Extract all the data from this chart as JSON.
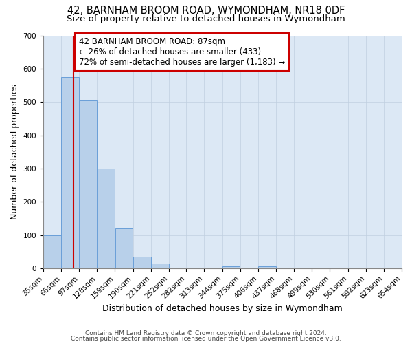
{
  "title": "42, BARNHAM BROOM ROAD, WYMONDHAM, NR18 0DF",
  "subtitle": "Size of property relative to detached houses in Wymondham",
  "xlabel": "Distribution of detached houses by size in Wymondham",
  "ylabel": "Number of detached properties",
  "bin_edges": [
    35,
    66,
    97,
    128,
    159,
    190,
    221,
    252,
    282,
    313,
    344,
    375,
    406,
    437,
    468,
    499,
    530,
    561,
    592,
    623,
    654
  ],
  "bin_labels": [
    "35sqm",
    "66sqm",
    "97sqm",
    "128sqm",
    "159sqm",
    "190sqm",
    "221sqm",
    "252sqm",
    "282sqm",
    "313sqm",
    "344sqm",
    "375sqm",
    "406sqm",
    "437sqm",
    "468sqm",
    "499sqm",
    "530sqm",
    "561sqm",
    "592sqm",
    "623sqm",
    "654sqm"
  ],
  "bar_heights": [
    100,
    575,
    505,
    300,
    120,
    35,
    15,
    0,
    0,
    0,
    5,
    0,
    5,
    0,
    0,
    0,
    0,
    0,
    0,
    0
  ],
  "bar_color": "#b8d0ea",
  "bar_edge_color": "#6a9fd8",
  "property_line_x": 87,
  "property_line_color": "#cc0000",
  "annotation_text": "42 BARNHAM BROOM ROAD: 87sqm\n← 26% of detached houses are smaller (433)\n72% of semi-detached houses are larger (1,183) →",
  "annotation_box_color": "#ffffff",
  "annotation_box_edge_color": "#cc0000",
  "ylim": [
    0,
    700
  ],
  "yticks": [
    0,
    100,
    200,
    300,
    400,
    500,
    600,
    700
  ],
  "footer_line1": "Contains HM Land Registry data © Crown copyright and database right 2024.",
  "footer_line2": "Contains public sector information licensed under the Open Government Licence v3.0.",
  "background_color": "#ffffff",
  "plot_bg_color": "#dce8f5",
  "grid_color": "#c0cfe0",
  "title_fontsize": 10.5,
  "subtitle_fontsize": 9.5,
  "axis_label_fontsize": 9,
  "tick_fontsize": 7.5,
  "annotation_fontsize": 8.5,
  "footer_fontsize": 6.5
}
